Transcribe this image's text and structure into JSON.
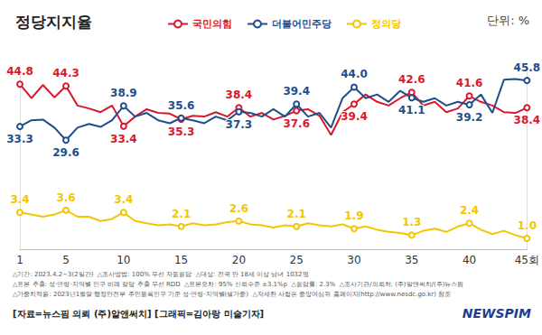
{
  "chart_data": {
    "type": "line",
    "title": "정당지지율",
    "unit": "단위: %",
    "categories": [
      "1",
      null,
      null,
      null,
      "5",
      null,
      null,
      null,
      null,
      "10",
      null,
      null,
      null,
      null,
      "15",
      null,
      null,
      null,
      null,
      "20",
      null,
      null,
      null,
      null,
      "25",
      null,
      null,
      null,
      null,
      "30",
      null,
      null,
      null,
      null,
      "35",
      null,
      null,
      null,
      null,
      "40",
      null,
      null,
      null,
      null,
      "45회"
    ],
    "series": [
      {
        "name": "국민의힘",
        "color": "#d7192d",
        "axis": "y",
        "values": [
          44.8,
          41.0,
          44.6,
          41.2,
          44.3,
          39.0,
          38.2,
          37.2,
          39.0,
          33.4,
          36.0,
          38.0,
          37.0,
          36.8,
          35.3,
          36.2,
          36.0,
          37.2,
          36.0,
          38.4,
          36.0,
          37.0,
          35.2,
          36.2,
          37.6,
          38.0,
          36.2,
          31.0,
          37.2,
          39.4,
          42.0,
          40.0,
          39.0,
          41.0,
          42.6,
          39.0,
          40.0,
          37.2,
          38.2,
          41.6,
          40.0,
          39.0,
          37.2,
          37.0,
          38.4
        ],
        "value_labels": [
          "44.8",
          null,
          null,
          null,
          "44.3",
          null,
          null,
          null,
          null,
          "33.4",
          null,
          null,
          null,
          null,
          "35.3",
          null,
          null,
          null,
          null,
          "38.4",
          null,
          null,
          null,
          null,
          "37.6",
          null,
          null,
          null,
          null,
          "39.4",
          null,
          null,
          null,
          null,
          "42.6",
          null,
          null,
          null,
          null,
          "41.6",
          null,
          null,
          null,
          null,
          "38.4"
        ]
      },
      {
        "name": "더불어민주당",
        "color": "#1f4e8c",
        "axis": "y",
        "values": [
          33.3,
          35.0,
          35.2,
          33.0,
          29.6,
          33.0,
          34.0,
          33.2,
          35.0,
          38.9,
          36.0,
          37.0,
          35.0,
          34.2,
          35.6,
          35.0,
          34.2,
          36.0,
          35.0,
          37.3,
          37.0,
          36.0,
          38.0,
          36.0,
          39.4,
          36.0,
          37.0,
          33.0,
          41.0,
          44.0,
          41.0,
          42.0,
          40.0,
          43.0,
          41.1,
          40.0,
          41.0,
          39.0,
          40.0,
          39.2,
          42.0,
          37.0,
          46.0,
          46.2,
          45.8
        ],
        "value_labels": [
          "33.3",
          null,
          null,
          null,
          "29.6",
          null,
          null,
          null,
          null,
          "38.9",
          null,
          null,
          null,
          null,
          "35.6",
          null,
          null,
          null,
          null,
          "37.3",
          null,
          null,
          null,
          null,
          "39.4",
          null,
          null,
          null,
          null,
          "44.0",
          null,
          null,
          null,
          null,
          "41.1",
          null,
          null,
          null,
          null,
          "39.2",
          null,
          null,
          null,
          null,
          "45.8"
        ]
      },
      {
        "name": "정의당",
        "color": "#f2c600",
        "axis": "y2",
        "values": [
          3.4,
          3.2,
          3.0,
          3.2,
          3.6,
          3.0,
          3.0,
          2.6,
          2.8,
          3.4,
          2.6,
          2.4,
          2.2,
          2.3,
          2.1,
          2.4,
          2.2,
          2.3,
          2.5,
          2.6,
          2.3,
          2.2,
          2.0,
          2.2,
          2.1,
          2.4,
          2.2,
          2.1,
          2.3,
          1.9,
          2.1,
          1.8,
          1.6,
          1.5,
          1.3,
          1.7,
          1.9,
          1.6,
          2.1,
          2.4,
          1.8,
          1.4,
          1.7,
          1.3,
          1.0
        ],
        "value_labels": [
          "3.4",
          null,
          null,
          null,
          "3.6",
          null,
          null,
          null,
          null,
          "3.4",
          null,
          null,
          null,
          null,
          "2.1",
          null,
          null,
          null,
          null,
          "2.6",
          null,
          null,
          null,
          null,
          "2.1",
          null,
          null,
          null,
          null,
          "1.9",
          null,
          null,
          null,
          null,
          "1.3",
          null,
          null,
          null,
          null,
          "2.4",
          null,
          null,
          null,
          null,
          "1.0"
        ]
      }
    ],
    "ylim": [
      0,
      50
    ],
    "y2lim": [
      0,
      17
    ],
    "legend": "top",
    "tick_labels": "x",
    "grid": false,
    "marker": "emptyCircle",
    "notes": [
      "△기간: 2023.4.2~3(2일간)  △조사방법: 100% 무선 자동응답  △대상: 전국 만 18세 이상 남녀 1032명",
      "△표본 추출: 성·연령·지역별 인구 비례 할당 추출 무선 RDD  △표본오차: 95% 신뢰수준 ±3.1%p  △응답률: 2.3%  △조사기관/의뢰처: (주)알앤써치/(주)뉴스핌",
      "△가중치적용: 2023년1월말 행정안전부 주민등록인구 기준 성·연령·지역별(셀가중)  △자세한 사항은 중앙여심위 홈페이지(http://www.nesdc.go.kr) 참조"
    ],
    "source": "[자료=뉴스핌 의뢰 (주)알앤써치] [그래픽=김아랑 미술기자]",
    "brand": "NEWSPIM"
  }
}
